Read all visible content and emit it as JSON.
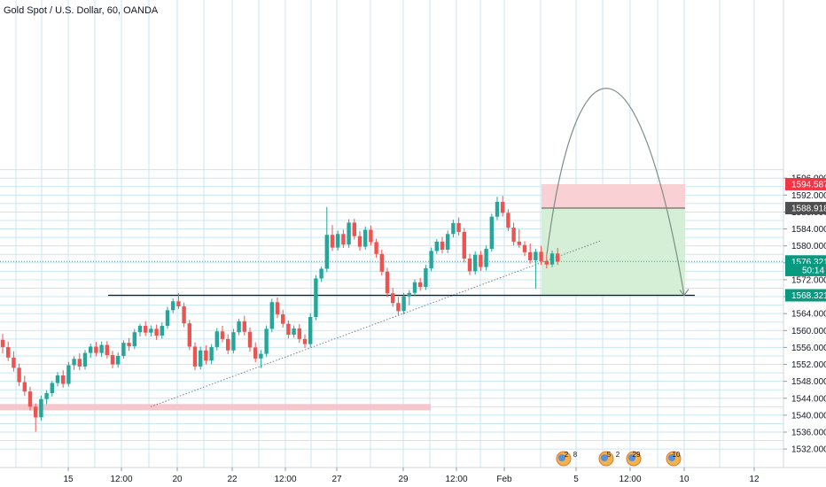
{
  "title": "Gold Spot / U.S. Dollar, 60, OANDA",
  "colors": {
    "up": "#26a69a",
    "down": "#ef5350",
    "grid": "#c7e7f3",
    "text": "#131722",
    "label_red": "#f23645",
    "label_gray": "#4f4f4f",
    "label_green": "#089981",
    "stop_zone": "#f9d1d4",
    "target_zone": "#d5efd6",
    "trend": "#7b7f87",
    "support_zone": "#f5c6cb",
    "arrow": "#7d8e84"
  },
  "chart_data": {
    "type": "candlestick",
    "symbol": "Gold Spot / U.S. Dollar",
    "interval": "60",
    "source": "OANDA",
    "ylim": [
      1530,
      1598
    ],
    "y_ticks": [
      "1532.000",
      "1536.000",
      "1540.000",
      "1544.000",
      "1548.000",
      "1552.000",
      "1556.000",
      "1560.000",
      "1564.000",
      "1568.000",
      "1572.000",
      "1576.000",
      "1580.000",
      "1584.000",
      "1588.000",
      "1592.000",
      "1596.000"
    ],
    "x_ticks": [
      "15",
      "12:00",
      "20",
      "22",
      "12:00",
      "27",
      "29",
      "12:00",
      "Feb",
      "5",
      "12:00",
      "10",
      "12"
    ],
    "price_labels": [
      {
        "text": "1594.587",
        "price": 1594.587,
        "kind": "stop"
      },
      {
        "text": "1588.918",
        "price": 1588.918,
        "kind": "entry"
      },
      {
        "text": "1576.321",
        "price": 1576.321,
        "kind": "current"
      },
      {
        "text": "50:14",
        "price": 1574.3,
        "kind": "countdown"
      },
      {
        "text": "1568.321",
        "price": 1568.321,
        "kind": "target"
      }
    ],
    "position": {
      "direction": "short",
      "entry": 1588.918,
      "stop": 1594.587,
      "target": 1568.321
    },
    "support_level": 1568.321,
    "support_zone": 1542,
    "current_price": 1576.321,
    "trendline": [
      {
        "idx": 13,
        "price": 1542
      },
      {
        "idx": 103,
        "price": 1576
      }
    ],
    "projection_start_price": 1578,
    "events": [
      "2",
      "8",
      "5",
      "2",
      "29",
      "10"
    ],
    "candles": [
      [
        1557.8,
        1559.2,
        1554.6,
        1556.1
      ],
      [
        1556.1,
        1557.4,
        1552.8,
        1553.6
      ],
      [
        1553.6,
        1555.1,
        1550.3,
        1551.2
      ],
      [
        1551.2,
        1552.2,
        1546.9,
        1547.8
      ],
      [
        1547.8,
        1549.3,
        1544.6,
        1545.6
      ],
      [
        1545.6,
        1546.7,
        1541.1,
        1542.0
      ],
      [
        1542.0,
        1542.8,
        1536.1,
        1539.5
      ],
      [
        1539.5,
        1544.6,
        1538.7,
        1543.8
      ],
      [
        1543.8,
        1545.9,
        1542.6,
        1545.2
      ],
      [
        1545.2,
        1548.1,
        1544.4,
        1547.6
      ],
      [
        1547.6,
        1550.2,
        1546.8,
        1549.4
      ],
      [
        1549.4,
        1550.6,
        1546.5,
        1547.4
      ],
      [
        1547.4,
        1552.6,
        1546.8,
        1551.8
      ],
      [
        1551.8,
        1553.9,
        1550.7,
        1553.3
      ],
      [
        1553.3,
        1554.6,
        1550.6,
        1551.5
      ],
      [
        1551.5,
        1555.4,
        1550.8,
        1554.7
      ],
      [
        1554.7,
        1556.9,
        1553.5,
        1556.2
      ],
      [
        1556.2,
        1557.3,
        1553.9,
        1554.7
      ],
      [
        1554.7,
        1557.4,
        1553.8,
        1556.6
      ],
      [
        1556.6,
        1557.5,
        1553.4,
        1554.2
      ],
      [
        1554.2,
        1555.2,
        1551.1,
        1552.0
      ],
      [
        1552.0,
        1554.8,
        1551.2,
        1554.0
      ],
      [
        1554.0,
        1557.7,
        1553.4,
        1557.1
      ],
      [
        1557.1,
        1558.2,
        1555.2,
        1556.3
      ],
      [
        1556.3,
        1560.4,
        1555.6,
        1559.6
      ],
      [
        1559.6,
        1561.6,
        1558.6,
        1561.1
      ],
      [
        1561.1,
        1562.2,
        1558.7,
        1559.5
      ],
      [
        1559.5,
        1561.2,
        1558.6,
        1560.4
      ],
      [
        1560.4,
        1561.4,
        1557.8,
        1558.8
      ],
      [
        1558.8,
        1561.9,
        1558.1,
        1561.1
      ],
      [
        1561.1,
        1565.6,
        1560.4,
        1564.8
      ],
      [
        1564.8,
        1567.6,
        1564.1,
        1566.9
      ],
      [
        1566.9,
        1568.9,
        1565.1,
        1565.7
      ],
      [
        1565.7,
        1566.6,
        1560.8,
        1561.7
      ],
      [
        1561.7,
        1562.5,
        1555.4,
        1556.2
      ],
      [
        1556.2,
        1557.2,
        1550.6,
        1551.5
      ],
      [
        1551.5,
        1556.2,
        1550.8,
        1555.3
      ],
      [
        1555.3,
        1556.5,
        1552.0,
        1552.9
      ],
      [
        1552.9,
        1556.8,
        1552.1,
        1556.1
      ],
      [
        1556.1,
        1560.6,
        1555.3,
        1559.8
      ],
      [
        1559.8,
        1561.1,
        1557.2,
        1558.0
      ],
      [
        1558.0,
        1559.1,
        1554.4,
        1555.3
      ],
      [
        1555.3,
        1560.4,
        1554.6,
        1559.6
      ],
      [
        1559.6,
        1562.8,
        1558.9,
        1562.2
      ],
      [
        1562.2,
        1563.5,
        1558.8,
        1559.7
      ],
      [
        1559.7,
        1560.7,
        1555.0,
        1556.0
      ],
      [
        1556.0,
        1557.2,
        1552.5,
        1553.4
      ],
      [
        1553.4,
        1555.4,
        1551.1,
        1554.5
      ],
      [
        1554.5,
        1561.2,
        1553.8,
        1560.4
      ],
      [
        1560.4,
        1567.5,
        1559.6,
        1566.7
      ],
      [
        1566.7,
        1567.8,
        1562.9,
        1563.8
      ],
      [
        1563.8,
        1564.9,
        1560.7,
        1561.6
      ],
      [
        1561.6,
        1562.4,
        1558.1,
        1559.0
      ],
      [
        1559.0,
        1561.2,
        1558.3,
        1560.5
      ],
      [
        1560.5,
        1561.5,
        1557.1,
        1558.0
      ],
      [
        1558.0,
        1559.1,
        1555.9,
        1556.8
      ],
      [
        1556.8,
        1564.1,
        1556.1,
        1563.2
      ],
      [
        1563.2,
        1573.1,
        1562.4,
        1572.3
      ],
      [
        1572.3,
        1575.1,
        1571.5,
        1574.6
      ],
      [
        1574.6,
        1589.2,
        1573.8,
        1582.6
      ],
      [
        1582.6,
        1584.9,
        1578.8,
        1579.6
      ],
      [
        1579.6,
        1583.6,
        1578.9,
        1582.8
      ],
      [
        1582.8,
        1583.8,
        1579.5,
        1580.3
      ],
      [
        1580.3,
        1586.3,
        1579.5,
        1585.5
      ],
      [
        1585.5,
        1586.4,
        1581.5,
        1582.3
      ],
      [
        1582.3,
        1583.5,
        1578.9,
        1579.8
      ],
      [
        1579.8,
        1584.6,
        1579.1,
        1583.8
      ],
      [
        1583.8,
        1584.8,
        1580.1,
        1580.9
      ],
      [
        1580.9,
        1581.7,
        1577.2,
        1578.1
      ],
      [
        1578.1,
        1579.1,
        1573.0,
        1573.9
      ],
      [
        1573.9,
        1574.8,
        1567.9,
        1568.8
      ],
      [
        1568.8,
        1570.1,
        1565.6,
        1566.5
      ],
      [
        1566.5,
        1567.9,
        1563.6,
        1564.6
      ],
      [
        1564.6,
        1568.9,
        1563.8,
        1568.1
      ],
      [
        1568.1,
        1569.6,
        1566.0,
        1568.9
      ],
      [
        1568.9,
        1572.1,
        1568.1,
        1571.4
      ],
      [
        1571.4,
        1572.4,
        1569.4,
        1570.3
      ],
      [
        1570.3,
        1575.5,
        1569.6,
        1574.7
      ],
      [
        1574.7,
        1579.6,
        1574.0,
        1578.8
      ],
      [
        1578.8,
        1581.6,
        1578.1,
        1581.0
      ],
      [
        1581.0,
        1582.1,
        1578.2,
        1579.1
      ],
      [
        1579.1,
        1583.6,
        1578.3,
        1582.8
      ],
      [
        1582.8,
        1586.2,
        1582.0,
        1585.4
      ],
      [
        1585.4,
        1586.7,
        1582.4,
        1583.3
      ],
      [
        1583.3,
        1584.2,
        1576.1,
        1577.0
      ],
      [
        1577.0,
        1578.1,
        1573.1,
        1574.0
      ],
      [
        1574.0,
        1578.7,
        1573.2,
        1577.9
      ],
      [
        1577.9,
        1578.8,
        1574.1,
        1575.0
      ],
      [
        1575.0,
        1580.1,
        1574.2,
        1579.3
      ],
      [
        1579.3,
        1587.6,
        1578.6,
        1586.9
      ],
      [
        1586.9,
        1591.6,
        1586.1,
        1590.4
      ],
      [
        1590.4,
        1591.8,
        1586.9,
        1587.8
      ],
      [
        1587.8,
        1588.7,
        1583.5,
        1584.3
      ],
      [
        1584.3,
        1585.5,
        1580.1,
        1581.0
      ],
      [
        1581.0,
        1583.9,
        1579.5,
        1580.2
      ],
      [
        1580.2,
        1581.1,
        1577.6,
        1578.5
      ],
      [
        1578.5,
        1580.6,
        1575.8,
        1576.6
      ],
      [
        1576.6,
        1579.3,
        1569.9,
        1578.6
      ],
      [
        1578.6,
        1580.0,
        1575.5,
        1576.4
      ],
      [
        1576.4,
        1578.0,
        1574.7,
        1575.6
      ],
      [
        1575.6,
        1578.9,
        1575.0,
        1578.2
      ],
      [
        1578.2,
        1579.5,
        1575.5,
        1576.3
      ]
    ]
  }
}
